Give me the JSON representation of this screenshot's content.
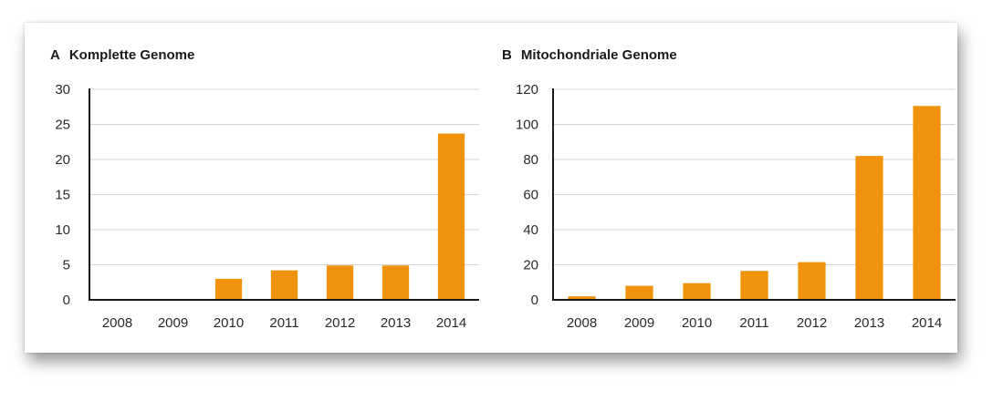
{
  "figure": {
    "accent_color": "#f0920c",
    "grid_color": "#d4d4d4",
    "axis_color": "#1a1a1a"
  },
  "chart_data": [
    {
      "type": "bar",
      "panel_letter": "A",
      "title": "Komplette Genome",
      "xlabel": "",
      "ylabel": "",
      "categories": [
        "2008",
        "2009",
        "2010",
        "2011",
        "2012",
        "2013",
        "2014"
      ],
      "values": [
        0,
        0,
        3,
        4.2,
        4.9,
        4.9,
        23.7
      ],
      "ylim": [
        0,
        30
      ],
      "yticks": [
        0,
        5,
        10,
        15,
        20,
        25,
        30
      ],
      "grid": true,
      "legend": "none"
    },
    {
      "type": "bar",
      "panel_letter": "B",
      "title": "Mitochondriale Genome",
      "xlabel": "",
      "ylabel": "",
      "categories": [
        "2008",
        "2009",
        "2010",
        "2011",
        "2012",
        "2013",
        "2014"
      ],
      "values": [
        2,
        8,
        9.5,
        16.5,
        21.5,
        82,
        110.5
      ],
      "ylim": [
        0,
        120
      ],
      "yticks": [
        0,
        20,
        40,
        60,
        80,
        100,
        120
      ],
      "grid": true,
      "legend": "none"
    }
  ]
}
